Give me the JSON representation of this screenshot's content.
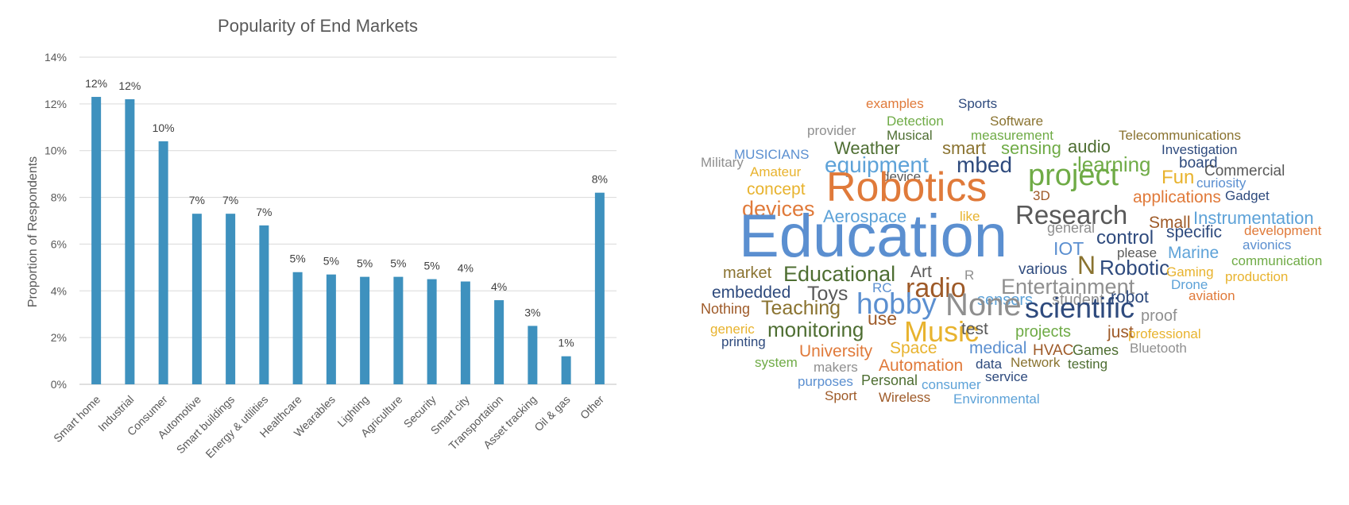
{
  "chart_data": {
    "type": "bar",
    "title": "Popularity of End Markets",
    "xlabel": "",
    "ylabel": "Proportion of Respondents",
    "ylim": [
      0,
      14
    ],
    "yticks": [
      "0%",
      "2%",
      "4%",
      "6%",
      "8%",
      "10%",
      "12%",
      "14%"
    ],
    "grid": true,
    "bar_color": "#3E91BE",
    "categories": [
      "Smart home",
      "Industrial",
      "Consumer",
      "Automotive",
      "Smart buildings",
      "Energy & utilities",
      "Healthcare",
      "Wearables",
      "Lighting",
      "Agriculture",
      "Security",
      "Smart city",
      "Transportation",
      "Asset tracking",
      "Oil & gas",
      "Other"
    ],
    "values": [
      12.3,
      12.2,
      10.4,
      7.3,
      7.3,
      6.8,
      4.8,
      4.7,
      4.6,
      4.6,
      4.5,
      4.4,
      3.6,
      2.5,
      1.2,
      8.2
    ],
    "data_labels": [
      "12%",
      "12%",
      "10%",
      "7%",
      "7%",
      "7%",
      "5%",
      "5%",
      "5%",
      "5%",
      "5%",
      "4%",
      "4%",
      "3%",
      "1%",
      "8%"
    ]
  },
  "word_cloud": {
    "colors": {
      "blue": "#5B8FD0",
      "orange": "#E07A3A",
      "gray": "#8F8F8F",
      "gold": "#E8B32E",
      "lightblue": "#5DA2D8",
      "green": "#6FAB46",
      "navy": "#2E4A7D",
      "brown": "#9E5A28",
      "darkgreen": "#4E6E32",
      "olive": "#8A7330"
    },
    "words": [
      {
        "text": "examples",
        "color": "#E07A3A"
      },
      {
        "text": "Sports",
        "color": "#2E4A7D"
      },
      {
        "text": "Detection",
        "color": "#6FAB46"
      },
      {
        "text": "Software",
        "color": "#8A7330"
      },
      {
        "text": "provider",
        "color": "#8F8F8F"
      },
      {
        "text": "Musical",
        "color": "#4E6E32"
      },
      {
        "text": "measurement",
        "color": "#6FAB46"
      },
      {
        "text": "Telecommunications",
        "color": "#8A7330"
      },
      {
        "text": "Weather",
        "color": "#4E6E32"
      },
      {
        "text": "smart",
        "color": "#8A7330"
      },
      {
        "text": "sensing",
        "color": "#6FAB46"
      },
      {
        "text": "audio",
        "color": "#4E6E32"
      },
      {
        "text": "Investigation",
        "color": "#2E4A7D"
      },
      {
        "text": "MUSICIANS",
        "color": "#5B8FD0"
      },
      {
        "text": "equipment",
        "color": "#5DA2D8"
      },
      {
        "text": "mbed",
        "color": "#2E4A7D"
      },
      {
        "text": "learning",
        "color": "#6FAB46"
      },
      {
        "text": "board",
        "color": "#2E4A7D"
      },
      {
        "text": "Military",
        "color": "#8F8F8F"
      },
      {
        "text": "Commercial",
        "color": "#595959"
      },
      {
        "text": "Amateur",
        "color": "#E8B32E"
      },
      {
        "text": "device",
        "color": "#595959"
      },
      {
        "text": "project",
        "color": "#6FAB46"
      },
      {
        "text": "Fun",
        "color": "#E8B32E"
      },
      {
        "text": "curiosity",
        "color": "#5B8FD0"
      },
      {
        "text": "concept",
        "color": "#E8B32E"
      },
      {
        "text": "Robotics",
        "color": "#E07A3A"
      },
      {
        "text": "3D",
        "color": "#9E5A28"
      },
      {
        "text": "applications",
        "color": "#E07A3A"
      },
      {
        "text": "Gadget",
        "color": "#2E4A7D"
      },
      {
        "text": "devices",
        "color": "#E07A3A"
      },
      {
        "text": "Research",
        "color": "#595959"
      },
      {
        "text": "Aerospace",
        "color": "#5DA2D8"
      },
      {
        "text": "like",
        "color": "#E8B32E"
      },
      {
        "text": "Instrumentation",
        "color": "#5DA2D8"
      },
      {
        "text": "Small",
        "color": "#9E5A28"
      },
      {
        "text": "development",
        "color": "#E07A3A"
      },
      {
        "text": "Education",
        "color": "#5B8FD0"
      },
      {
        "text": "general",
        "color": "#8F8F8F"
      },
      {
        "text": "specific",
        "color": "#2E4A7D"
      },
      {
        "text": "IOT",
        "color": "#5B8FD0"
      },
      {
        "text": "control",
        "color": "#2E4A7D"
      },
      {
        "text": "avionics",
        "color": "#5B8FD0"
      },
      {
        "text": "please",
        "color": "#595959"
      },
      {
        "text": "Marine",
        "color": "#5DA2D8"
      },
      {
        "text": "communication",
        "color": "#6FAB46"
      },
      {
        "text": "N",
        "color": "#8A7330"
      },
      {
        "text": "market",
        "color": "#8A7330"
      },
      {
        "text": "Educational",
        "color": "#4E6E32"
      },
      {
        "text": "Art",
        "color": "#595959"
      },
      {
        "text": "various",
        "color": "#2E4A7D"
      },
      {
        "text": "Robotic",
        "color": "#2E4A7D"
      },
      {
        "text": "Gaming",
        "color": "#E8B32E"
      },
      {
        "text": "production",
        "color": "#E8B32E"
      },
      {
        "text": "R",
        "color": "#8F8F8F"
      },
      {
        "text": "RC",
        "color": "#5B8FD0"
      },
      {
        "text": "radio",
        "color": "#9E5A28"
      },
      {
        "text": "Entertainment",
        "color": "#8F8F8F"
      },
      {
        "text": "Drone",
        "color": "#5DA2D8"
      },
      {
        "text": "embedded",
        "color": "#2E4A7D"
      },
      {
        "text": "Toys",
        "color": "#595959"
      },
      {
        "text": "hobby",
        "color": "#5B8FD0"
      },
      {
        "text": "sensors",
        "color": "#5DA2D8"
      },
      {
        "text": "student",
        "color": "#8F8F8F"
      },
      {
        "text": "robot",
        "color": "#2E4A7D"
      },
      {
        "text": "aviation",
        "color": "#E07A3A"
      },
      {
        "text": "Nothing",
        "color": "#9E5A28"
      },
      {
        "text": "Teaching",
        "color": "#8A7330"
      },
      {
        "text": "None",
        "color": "#8F8F8F"
      },
      {
        "text": "scientific",
        "color": "#2E4A7D"
      },
      {
        "text": "use",
        "color": "#9E5A28"
      },
      {
        "text": "proof",
        "color": "#8F8F8F"
      },
      {
        "text": "generic",
        "color": "#E8B32E"
      },
      {
        "text": "monitoring",
        "color": "#4E6E32"
      },
      {
        "text": "Music",
        "color": "#E8B32E"
      },
      {
        "text": "test",
        "color": "#595959"
      },
      {
        "text": "projects",
        "color": "#6FAB46"
      },
      {
        "text": "just",
        "color": "#9E5A28"
      },
      {
        "text": "professional",
        "color": "#E8B32E"
      },
      {
        "text": "printing",
        "color": "#2E4A7D"
      },
      {
        "text": "Space",
        "color": "#E8B32E"
      },
      {
        "text": "University",
        "color": "#E07A3A"
      },
      {
        "text": "medical",
        "color": "#5B8FD0"
      },
      {
        "text": "HVAC",
        "color": "#9E5A28"
      },
      {
        "text": "Games",
        "color": "#4E6E32"
      },
      {
        "text": "Bluetooth",
        "color": "#8F8F8F"
      },
      {
        "text": "system",
        "color": "#6FAB46"
      },
      {
        "text": "makers",
        "color": "#8F8F8F"
      },
      {
        "text": "Automation",
        "color": "#E07A3A"
      },
      {
        "text": "data",
        "color": "#2E4A7D"
      },
      {
        "text": "Network",
        "color": "#8A7330"
      },
      {
        "text": "testing",
        "color": "#4E6E32"
      },
      {
        "text": "service",
        "color": "#2E4A7D"
      },
      {
        "text": "purposes",
        "color": "#5B8FD0"
      },
      {
        "text": "Personal",
        "color": "#4E6E32"
      },
      {
        "text": "consumer",
        "color": "#5DA2D8"
      },
      {
        "text": "Sport",
        "color": "#9E5A28"
      },
      {
        "text": "Wireless",
        "color": "#9E5A28"
      },
      {
        "text": "Environmental",
        "color": "#5DA2D8"
      }
    ]
  }
}
